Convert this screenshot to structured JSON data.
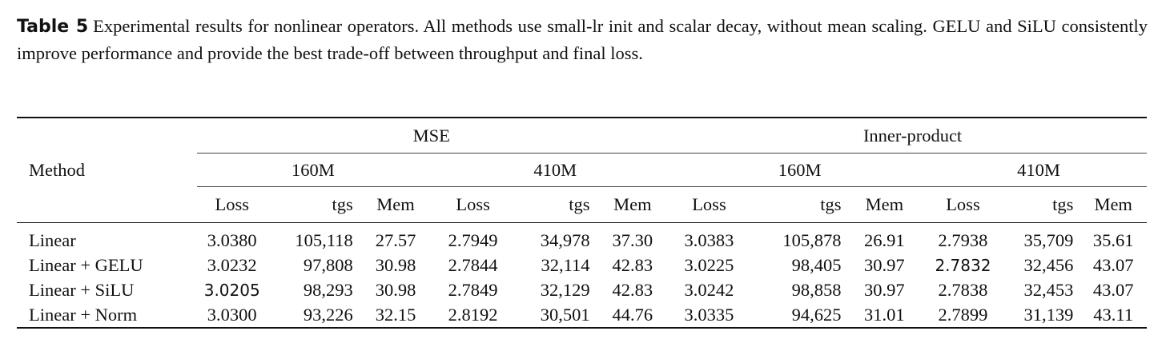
{
  "caption": {
    "label": "Table 5",
    "text": "Experimental results for nonlinear operators. All methods use small-lr init and scalar decay, without mean scaling. GELU and SiLU consistently improve performance and provide the best trade-off between throughput and final loss."
  },
  "table": {
    "method_header": "Method",
    "groups": [
      "MSE",
      "Inner-product"
    ],
    "sizes": [
      "160M",
      "410M",
      "160M",
      "410M"
    ],
    "metrics": [
      "Loss",
      "tgs",
      "Mem"
    ],
    "rows": [
      {
        "method": "Linear",
        "values": [
          "3.0380",
          "105,118",
          "27.57",
          "2.7949",
          "34,978",
          "37.30",
          "3.0383",
          "105,878",
          "26.91",
          "2.7938",
          "35,709",
          "35.61"
        ],
        "bold": []
      },
      {
        "method": "Linear + GELU",
        "values": [
          "3.0232",
          "97,808",
          "30.98",
          "2.7844",
          "32,114",
          "42.83",
          "3.0225",
          "98,405",
          "30.97",
          "2.7832",
          "32,456",
          "43.07"
        ],
        "bold": [
          9
        ]
      },
      {
        "method": "Linear + SiLU",
        "values": [
          "3.0205",
          "98,293",
          "30.98",
          "2.7849",
          "32,129",
          "42.83",
          "3.0242",
          "98,858",
          "30.97",
          "2.7838",
          "32,453",
          "43.07"
        ],
        "bold": [
          0
        ]
      },
      {
        "method": "Linear + Norm",
        "values": [
          "3.0300",
          "93,226",
          "32.15",
          "2.8192",
          "30,501",
          "44.76",
          "3.0335",
          "94,625",
          "31.01",
          "2.7899",
          "31,139",
          "43.11"
        ],
        "bold": []
      }
    ]
  }
}
